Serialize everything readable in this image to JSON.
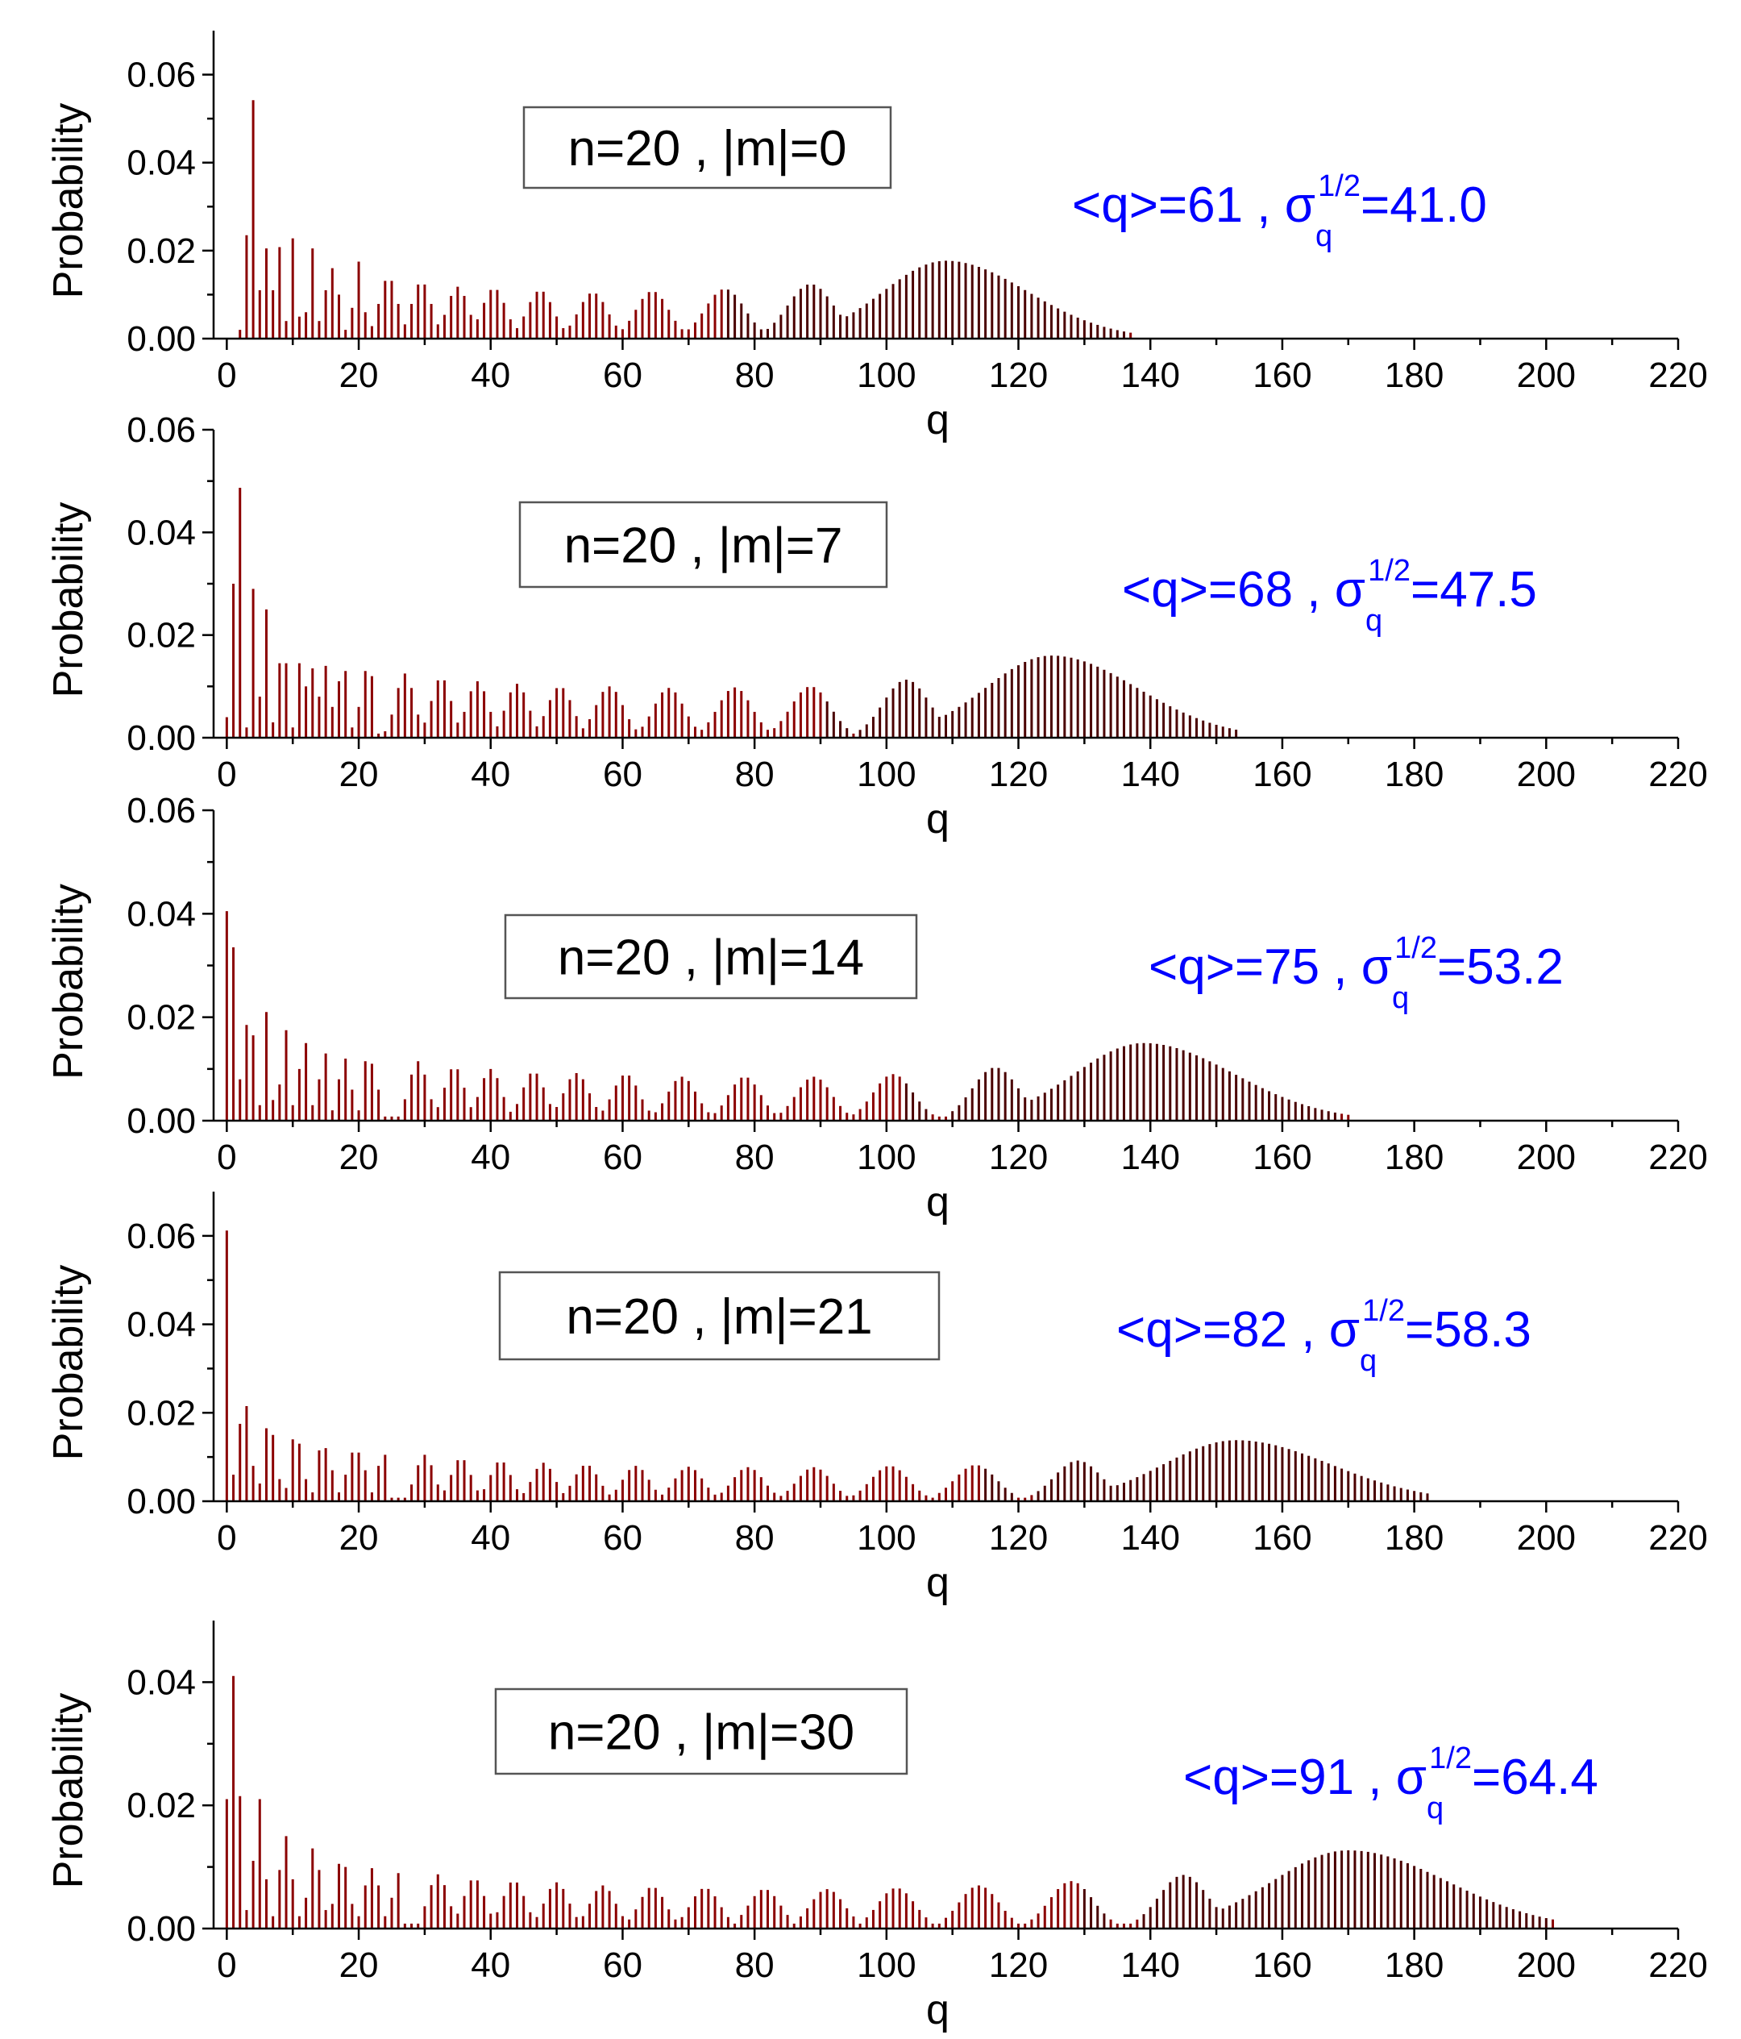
{
  "chart_data": [
    {
      "type": "bar",
      "box_label": "n=20 , |m|=0",
      "stats": {
        "mean_text": "<q>=61 , ",
        "sigma_symbol": "σ",
        "sigma_sub": "q",
        "sigma_sup": "1/2",
        "sigma_text": "=41.0"
      },
      "xlabel": "q",
      "ylabel": "Probability",
      "xlim": [
        -2,
        220
      ],
      "ylim": [
        0,
        0.07
      ],
      "xticks": [
        0,
        20,
        40,
        60,
        80,
        100,
        120,
        140,
        160,
        180,
        200,
        220
      ],
      "yticks": [
        0.0,
        0.02,
        0.04,
        0.06
      ],
      "ytick_labels": [
        "0.00",
        "0.02",
        "0.04",
        "0.06"
      ],
      "main_peak": {
        "center": 109,
        "height": 0.0177,
        "width": 9.5,
        "tail_end": 137
      },
      "clusters": [
        {
          "center": 88.5,
          "height": 0.0124,
          "width": 3.5
        },
        {
          "center": 75.5,
          "height": 0.0113,
          "width": 3.0
        },
        {
          "center": 64.5,
          "height": 0.0108,
          "width": 2.5
        },
        {
          "center": 55.5,
          "height": 0.0105,
          "width": 2.2
        },
        {
          "center": 47.5,
          "height": 0.011,
          "width": 2.0
        },
        {
          "center": 40.5,
          "height": 0.0115,
          "width": 1.8
        },
        {
          "center": 35,
          "height": 0.0118,
          "width": 1.6
        },
        {
          "center": 29.5,
          "height": 0.013,
          "width": 1.5
        },
        {
          "center": 24.5,
          "height": 0.014,
          "width": 1.4
        }
      ],
      "early_bars": [
        {
          "q": 2,
          "p": 0.002
        },
        {
          "q": 3,
          "p": 0.0235
        },
        {
          "q": 4,
          "p": 0.0542
        },
        {
          "q": 5,
          "p": 0.011
        },
        {
          "q": 6,
          "p": 0.0205
        },
        {
          "q": 7,
          "p": 0.011
        },
        {
          "q": 8,
          "p": 0.0208
        },
        {
          "q": 9,
          "p": 0.004
        },
        {
          "q": 10,
          "p": 0.0228
        },
        {
          "q": 11,
          "p": 0.005
        },
        {
          "q": 12,
          "p": 0.006
        },
        {
          "q": 13,
          "p": 0.0205
        },
        {
          "q": 14,
          "p": 0.004
        },
        {
          "q": 15,
          "p": 0.011
        },
        {
          "q": 16,
          "p": 0.016
        },
        {
          "q": 17,
          "p": 0.01
        },
        {
          "q": 18,
          "p": 0.002
        },
        {
          "q": 19,
          "p": 0.007
        },
        {
          "q": 20,
          "p": 0.0175
        },
        {
          "q": 21,
          "p": 0.006
        }
      ]
    },
    {
      "type": "bar",
      "box_label": "n=20 , |m|=7",
      "stats": {
        "mean_text": "<q>=68 , ",
        "sigma_symbol": "σ",
        "sigma_sub": "q",
        "sigma_sup": "1/2",
        "sigma_text": "=47.5"
      },
      "xlabel": "q",
      "ylabel": "Probability",
      "xlim": [
        -2,
        220
      ],
      "ylim": [
        0,
        0.06
      ],
      "xticks": [
        0,
        20,
        40,
        60,
        80,
        100,
        120,
        140,
        160,
        180,
        200,
        220
      ],
      "yticks": [
        0.0,
        0.02,
        0.04,
        0.06
      ],
      "ytick_labels": [
        "0.00",
        "0.02",
        "0.04",
        "0.06"
      ],
      "main_peak": {
        "center": 125,
        "height": 0.016,
        "width": 10.0,
        "tail_end": 153
      },
      "clusters": [
        {
          "center": 103,
          "height": 0.0113,
          "width": 3.5
        },
        {
          "center": 88.5,
          "height": 0.01,
          "width": 3.0
        },
        {
          "center": 77,
          "height": 0.0098,
          "width": 2.6
        },
        {
          "center": 67,
          "height": 0.0097,
          "width": 2.3
        },
        {
          "center": 58,
          "height": 0.01,
          "width": 2.1
        },
        {
          "center": 50.5,
          "height": 0.01,
          "width": 1.9
        },
        {
          "center": 44,
          "height": 0.0105,
          "width": 1.7
        },
        {
          "center": 38,
          "height": 0.011,
          "width": 1.6
        },
        {
          "center": 32.5,
          "height": 0.0118,
          "width": 1.5
        },
        {
          "center": 27,
          "height": 0.0125,
          "width": 1.4
        }
      ],
      "early_bars": [
        {
          "q": 0,
          "p": 0.004
        },
        {
          "q": 1,
          "p": 0.03
        },
        {
          "q": 2,
          "p": 0.0487
        },
        {
          "q": 3,
          "p": 0.002
        },
        {
          "q": 4,
          "p": 0.029
        },
        {
          "q": 5,
          "p": 0.008
        },
        {
          "q": 6,
          "p": 0.025
        },
        {
          "q": 7,
          "p": 0.003
        },
        {
          "q": 8,
          "p": 0.0145
        },
        {
          "q": 9,
          "p": 0.0145
        },
        {
          "q": 10,
          "p": 0.002
        },
        {
          "q": 11,
          "p": 0.0145
        },
        {
          "q": 12,
          "p": 0.01
        },
        {
          "q": 13,
          "p": 0.0135
        },
        {
          "q": 14,
          "p": 0.008
        },
        {
          "q": 15,
          "p": 0.014
        },
        {
          "q": 16,
          "p": 0.006
        },
        {
          "q": 17,
          "p": 0.011
        },
        {
          "q": 18,
          "p": 0.013
        },
        {
          "q": 19,
          "p": 0.002
        },
        {
          "q": 20,
          "p": 0.006
        },
        {
          "q": 21,
          "p": 0.013
        },
        {
          "q": 22,
          "p": 0.012
        }
      ]
    },
    {
      "type": "bar",
      "box_label": "n=20 , |m|=14",
      "stats": {
        "mean_text": "<q>=75 , ",
        "sigma_symbol": "σ",
        "sigma_sub": "q",
        "sigma_sup": "1/2",
        "sigma_text": "=53.2"
      },
      "xlabel": "q",
      "ylabel": "Probability",
      "xlim": [
        -2,
        220
      ],
      "ylim": [
        0,
        0.06
      ],
      "xticks": [
        0,
        20,
        40,
        60,
        80,
        100,
        120,
        140,
        160,
        180,
        200,
        220
      ],
      "yticks": [
        0.0,
        0.02,
        0.04,
        0.06
      ],
      "ytick_labels": [
        "0.00",
        "0.02",
        "0.04",
        "0.06"
      ],
      "main_peak": {
        "center": 139,
        "height": 0.015,
        "width": 10.5,
        "tail_end": 170
      },
      "clusters": [
        {
          "center": 116.5,
          "height": 0.0103,
          "width": 3.5
        },
        {
          "center": 101,
          "height": 0.009,
          "width": 3.0
        },
        {
          "center": 89,
          "height": 0.0085,
          "width": 2.7
        },
        {
          "center": 78.5,
          "height": 0.0085,
          "width": 2.4
        },
        {
          "center": 69,
          "height": 0.0085,
          "width": 2.2
        },
        {
          "center": 60.5,
          "height": 0.009,
          "width": 2.0
        },
        {
          "center": 53,
          "height": 0.0092,
          "width": 1.9
        },
        {
          "center": 46.5,
          "height": 0.0095,
          "width": 1.7
        },
        {
          "center": 40,
          "height": 0.01,
          "width": 1.6
        },
        {
          "center": 34.5,
          "height": 0.0105,
          "width": 1.5
        },
        {
          "center": 29,
          "height": 0.0115,
          "width": 1.4
        }
      ],
      "early_bars": [
        {
          "q": 0,
          "p": 0.0405
        },
        {
          "q": 1,
          "p": 0.0335
        },
        {
          "q": 2,
          "p": 0.008
        },
        {
          "q": 3,
          "p": 0.0185
        },
        {
          "q": 4,
          "p": 0.0165
        },
        {
          "q": 5,
          "p": 0.003
        },
        {
          "q": 6,
          "p": 0.021
        },
        {
          "q": 7,
          "p": 0.004
        },
        {
          "q": 8,
          "p": 0.007
        },
        {
          "q": 9,
          "p": 0.0175
        },
        {
          "q": 10,
          "p": 0.003
        },
        {
          "q": 11,
          "p": 0.01
        },
        {
          "q": 12,
          "p": 0.015
        },
        {
          "q": 13,
          "p": 0.003
        },
        {
          "q": 14,
          "p": 0.008
        },
        {
          "q": 15,
          "p": 0.013
        },
        {
          "q": 16,
          "p": 0.002
        },
        {
          "q": 17,
          "p": 0.008
        },
        {
          "q": 18,
          "p": 0.012
        },
        {
          "q": 19,
          "p": 0.006
        },
        {
          "q": 20,
          "p": 0.002
        },
        {
          "q": 21,
          "p": 0.0115
        },
        {
          "q": 22,
          "p": 0.011
        },
        {
          "q": 23,
          "p": 0.006
        }
      ]
    },
    {
      "type": "bar",
      "box_label": "n=20 , |m|=21",
      "stats": {
        "mean_text": "<q>=82 , ",
        "sigma_symbol": "σ",
        "sigma_sub": "q",
        "sigma_sup": "1/2",
        "sigma_text": "=58.3"
      },
      "xlabel": "q",
      "ylabel": "Probability",
      "xlim": [
        -2,
        220
      ],
      "ylim": [
        0,
        0.07
      ],
      "xticks": [
        0,
        20,
        40,
        60,
        80,
        100,
        120,
        140,
        160,
        180,
        200,
        220
      ],
      "yticks": [
        0.0,
        0.02,
        0.04,
        0.06
      ],
      "ytick_labels": [
        "0.00",
        "0.02",
        "0.04",
        "0.06"
      ],
      "main_peak": {
        "center": 153,
        "height": 0.0138,
        "width": 11.0,
        "tail_end": 182
      },
      "clusters": [
        {
          "center": 129,
          "height": 0.0092,
          "width": 3.6
        },
        {
          "center": 113.5,
          "height": 0.0082,
          "width": 3.2
        },
        {
          "center": 100.5,
          "height": 0.008,
          "width": 2.9
        },
        {
          "center": 89,
          "height": 0.0077,
          "width": 2.6
        },
        {
          "center": 79,
          "height": 0.0077,
          "width": 2.4
        },
        {
          "center": 70,
          "height": 0.0078,
          "width": 2.2
        },
        {
          "center": 62,
          "height": 0.008,
          "width": 2.0
        },
        {
          "center": 54.5,
          "height": 0.0083,
          "width": 1.9
        },
        {
          "center": 48,
          "height": 0.0087,
          "width": 1.7
        },
        {
          "center": 41.5,
          "height": 0.0092,
          "width": 1.6
        },
        {
          "center": 35.5,
          "height": 0.0098,
          "width": 1.5
        },
        {
          "center": 30,
          "height": 0.0105,
          "width": 1.4
        }
      ],
      "early_bars": [
        {
          "q": 0,
          "p": 0.0612
        },
        {
          "q": 1,
          "p": 0.006
        },
        {
          "q": 2,
          "p": 0.0175
        },
        {
          "q": 3,
          "p": 0.0215
        },
        {
          "q": 4,
          "p": 0.008
        },
        {
          "q": 5,
          "p": 0.004
        },
        {
          "q": 6,
          "p": 0.0165
        },
        {
          "q": 7,
          "p": 0.015
        },
        {
          "q": 8,
          "p": 0.005
        },
        {
          "q": 9,
          "p": 0.003
        },
        {
          "q": 10,
          "p": 0.014
        },
        {
          "q": 11,
          "p": 0.013
        },
        {
          "q": 12,
          "p": 0.005
        },
        {
          "q": 13,
          "p": 0.002
        },
        {
          "q": 14,
          "p": 0.0115
        },
        {
          "q": 15,
          "p": 0.012
        },
        {
          "q": 16,
          "p": 0.007
        },
        {
          "q": 17,
          "p": 0.002
        },
        {
          "q": 18,
          "p": 0.006
        },
        {
          "q": 19,
          "p": 0.011
        },
        {
          "q": 20,
          "p": 0.011
        },
        {
          "q": 21,
          "p": 0.007
        },
        {
          "q": 22,
          "p": 0.002
        },
        {
          "q": 23,
          "p": 0.008
        },
        {
          "q": 24,
          "p": 0.0105
        }
      ]
    },
    {
      "type": "bar",
      "box_label": "n=20 , |m|=30",
      "stats": {
        "mean_text": "<q>=91 , ",
        "sigma_symbol": "σ",
        "sigma_sub": "q",
        "sigma_sup": "1/2",
        "sigma_text": "=64.4"
      },
      "xlabel": "q",
      "ylabel": "Probability",
      "xlim": [
        -2,
        220
      ],
      "ylim": [
        0,
        0.05
      ],
      "xticks": [
        0,
        20,
        40,
        60,
        80,
        100,
        120,
        140,
        160,
        180,
        200,
        220
      ],
      "yticks": [
        0.0,
        0.02,
        0.04
      ],
      "ytick_labels": [
        "0.00",
        "0.02",
        "0.04"
      ],
      "main_peak": {
        "center": 170,
        "height": 0.0127,
        "width": 11.5,
        "tail_end": 201
      },
      "clusters": [
        {
          "center": 145,
          "height": 0.0087,
          "width": 3.7
        },
        {
          "center": 128,
          "height": 0.0077,
          "width": 3.3
        },
        {
          "center": 114,
          "height": 0.007,
          "width": 3.0
        },
        {
          "center": 101.5,
          "height": 0.0066,
          "width": 2.8
        },
        {
          "center": 91,
          "height": 0.0064,
          "width": 2.6
        },
        {
          "center": 81.5,
          "height": 0.0064,
          "width": 2.4
        },
        {
          "center": 72.5,
          "height": 0.0066,
          "width": 2.2
        },
        {
          "center": 64.5,
          "height": 0.0068,
          "width": 2.0
        },
        {
          "center": 57,
          "height": 0.007,
          "width": 1.9
        },
        {
          "center": 50,
          "height": 0.0075,
          "width": 1.8
        },
        {
          "center": 43.5,
          "height": 0.0078,
          "width": 1.7
        },
        {
          "center": 37.5,
          "height": 0.0082,
          "width": 1.6
        },
        {
          "center": 32,
          "height": 0.0088,
          "width": 1.5
        }
      ],
      "early_bars": [
        {
          "q": 0,
          "p": 0.021
        },
        {
          "q": 1,
          "p": 0.041
        },
        {
          "q": 2,
          "p": 0.0215
        },
        {
          "q": 3,
          "p": 0.003
        },
        {
          "q": 4,
          "p": 0.011
        },
        {
          "q": 5,
          "p": 0.021
        },
        {
          "q": 6,
          "p": 0.008
        },
        {
          "q": 7,
          "p": 0.002
        },
        {
          "q": 8,
          "p": 0.0095
        },
        {
          "q": 9,
          "p": 0.015
        },
        {
          "q": 10,
          "p": 0.008
        },
        {
          "q": 11,
          "p": 0.002
        },
        {
          "q": 12,
          "p": 0.005
        },
        {
          "q": 13,
          "p": 0.013
        },
        {
          "q": 14,
          "p": 0.0095
        },
        {
          "q": 15,
          "p": 0.003
        },
        {
          "q": 16,
          "p": 0.004
        },
        {
          "q": 17,
          "p": 0.0105
        },
        {
          "q": 18,
          "p": 0.01
        },
        {
          "q": 19,
          "p": 0.004
        },
        {
          "q": 20,
          "p": 0.002
        },
        {
          "q": 21,
          "p": 0.007
        },
        {
          "q": 22,
          "p": 0.0098
        },
        {
          "q": 23,
          "p": 0.007
        },
        {
          "q": 24,
          "p": 0.002
        },
        {
          "q": 25,
          "p": 0.005
        },
        {
          "q": 26,
          "p": 0.009
        }
      ]
    }
  ],
  "colors": {
    "bar_main": "#8b0000",
    "bar_peak": "#4a0000",
    "stats_text": "#0000ff",
    "axis": "#000000"
  }
}
